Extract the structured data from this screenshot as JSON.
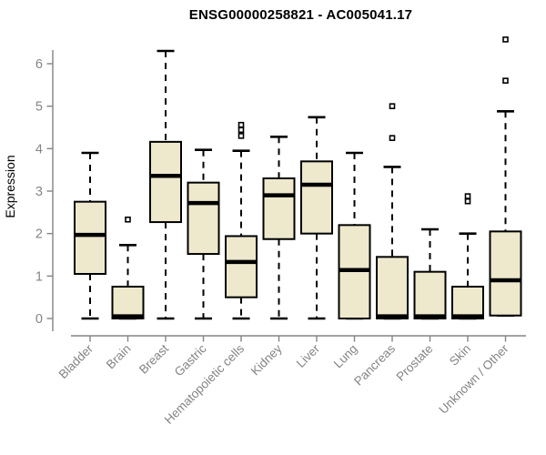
{
  "header": {
    "title": "ENSG00000258821 - AC005041.17"
  },
  "chart_data": {
    "type": "boxplot",
    "title": "ENSG00000258821 - AC005041.17",
    "xlabel": "",
    "ylabel": "Expression",
    "ylim": [
      0,
      6.8
    ],
    "yticks": [
      0,
      1,
      2,
      3,
      4,
      5,
      6
    ],
    "grid": false,
    "legend": null,
    "colors": {
      "box_fill": "#EEE8CD",
      "box_stroke": "#000000",
      "median": "#000000",
      "axis": "#848484",
      "tick_label": "#848484",
      "title": "#000000",
      "background": "#ffffff"
    },
    "categories": [
      "Bladder",
      "Brain",
      "Breast",
      "Gastric",
      "Hematopoietic cells",
      "Kidney",
      "Liver",
      "Lung",
      "Pancreas",
      "Prostate",
      "Skin",
      "Unknown / Other"
    ],
    "series": [
      {
        "category": "Bladder",
        "whisker_low": 0,
        "q1": 1.05,
        "median": 1.97,
        "q3": 2.75,
        "whisker_high": 3.9,
        "outliers": []
      },
      {
        "category": "Brain",
        "whisker_low": 0,
        "q1": 0,
        "median": 0.05,
        "q3": 0.75,
        "whisker_high": 1.73,
        "outliers": [
          2.33
        ]
      },
      {
        "category": "Breast",
        "whisker_low": 0,
        "q1": 2.27,
        "median": 3.36,
        "q3": 4.16,
        "whisker_high": 6.3,
        "outliers": []
      },
      {
        "category": "Gastric",
        "whisker_low": 0,
        "q1": 1.52,
        "median": 2.72,
        "q3": 3.2,
        "whisker_high": 3.97,
        "outliers": []
      },
      {
        "category": "Hematopoietic cells",
        "whisker_low": 0,
        "q1": 0.5,
        "median": 1.33,
        "q3": 1.94,
        "whisker_high": 3.95,
        "outliers": [
          4.3,
          4.44,
          4.56
        ]
      },
      {
        "category": "Kidney",
        "whisker_low": 0,
        "q1": 1.87,
        "median": 2.9,
        "q3": 3.3,
        "whisker_high": 4.28,
        "outliers": []
      },
      {
        "category": "Liver",
        "whisker_low": 0,
        "q1": 2.0,
        "median": 3.15,
        "q3": 3.7,
        "whisker_high": 4.74,
        "outliers": []
      },
      {
        "category": "Lung",
        "whisker_low": 0,
        "q1": 0,
        "median": 1.14,
        "q3": 2.2,
        "whisker_high": 3.9,
        "outliers": []
      },
      {
        "category": "Pancreas",
        "whisker_low": 0,
        "q1": 0,
        "median": 0.05,
        "q3": 1.45,
        "whisker_high": 3.57,
        "outliers": [
          4.25,
          5.0
        ]
      },
      {
        "category": "Prostate",
        "whisker_low": 0,
        "q1": 0,
        "median": 0.05,
        "q3": 1.1,
        "whisker_high": 2.1,
        "outliers": []
      },
      {
        "category": "Skin",
        "whisker_low": 0,
        "q1": 0,
        "median": 0.05,
        "q3": 0.75,
        "whisker_high": 2.0,
        "outliers": [
          2.76,
          2.88
        ]
      },
      {
        "category": "Unknown / Other",
        "whisker_low": 0.07,
        "q1": 0.07,
        "median": 0.9,
        "q3": 2.05,
        "whisker_high": 4.88,
        "outliers": [
          5.6,
          6.57
        ]
      }
    ]
  }
}
